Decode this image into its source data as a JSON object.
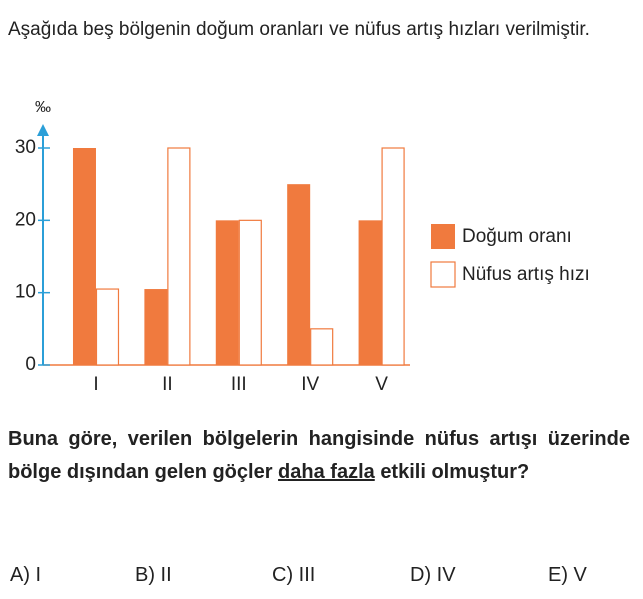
{
  "intro": "Aşağıda beş bölgenin doğum oranları ve nüfus artış hızları verilmiştir.",
  "chart_data": {
    "type": "bar",
    "y_label": "‰",
    "categories": [
      "I",
      "II",
      "III",
      "IV",
      "V"
    ],
    "series": [
      {
        "name": "Doğum oranı",
        "color": "#f07a3e",
        "fill": true,
        "values": [
          30,
          10.5,
          20,
          25,
          20
        ]
      },
      {
        "name": "Nüfus artış hızı",
        "color": "#f07a3e",
        "fill": false,
        "values": [
          10.5,
          30,
          20,
          5,
          30
        ]
      }
    ],
    "ylim": [
      0,
      30
    ],
    "yticks": [
      0,
      10,
      20,
      30
    ],
    "legend": "right"
  },
  "question": {
    "before": "Buna göre, verilen bölgelerin hangisinde nüfus artışı üzerinde bölge dışından gelen göçler",
    "underlined": "daha fazla",
    "after": "etkili olmuştur?"
  },
  "options": [
    "A) I",
    "B) II",
    "C) III",
    "D) IV",
    "E) V"
  ]
}
